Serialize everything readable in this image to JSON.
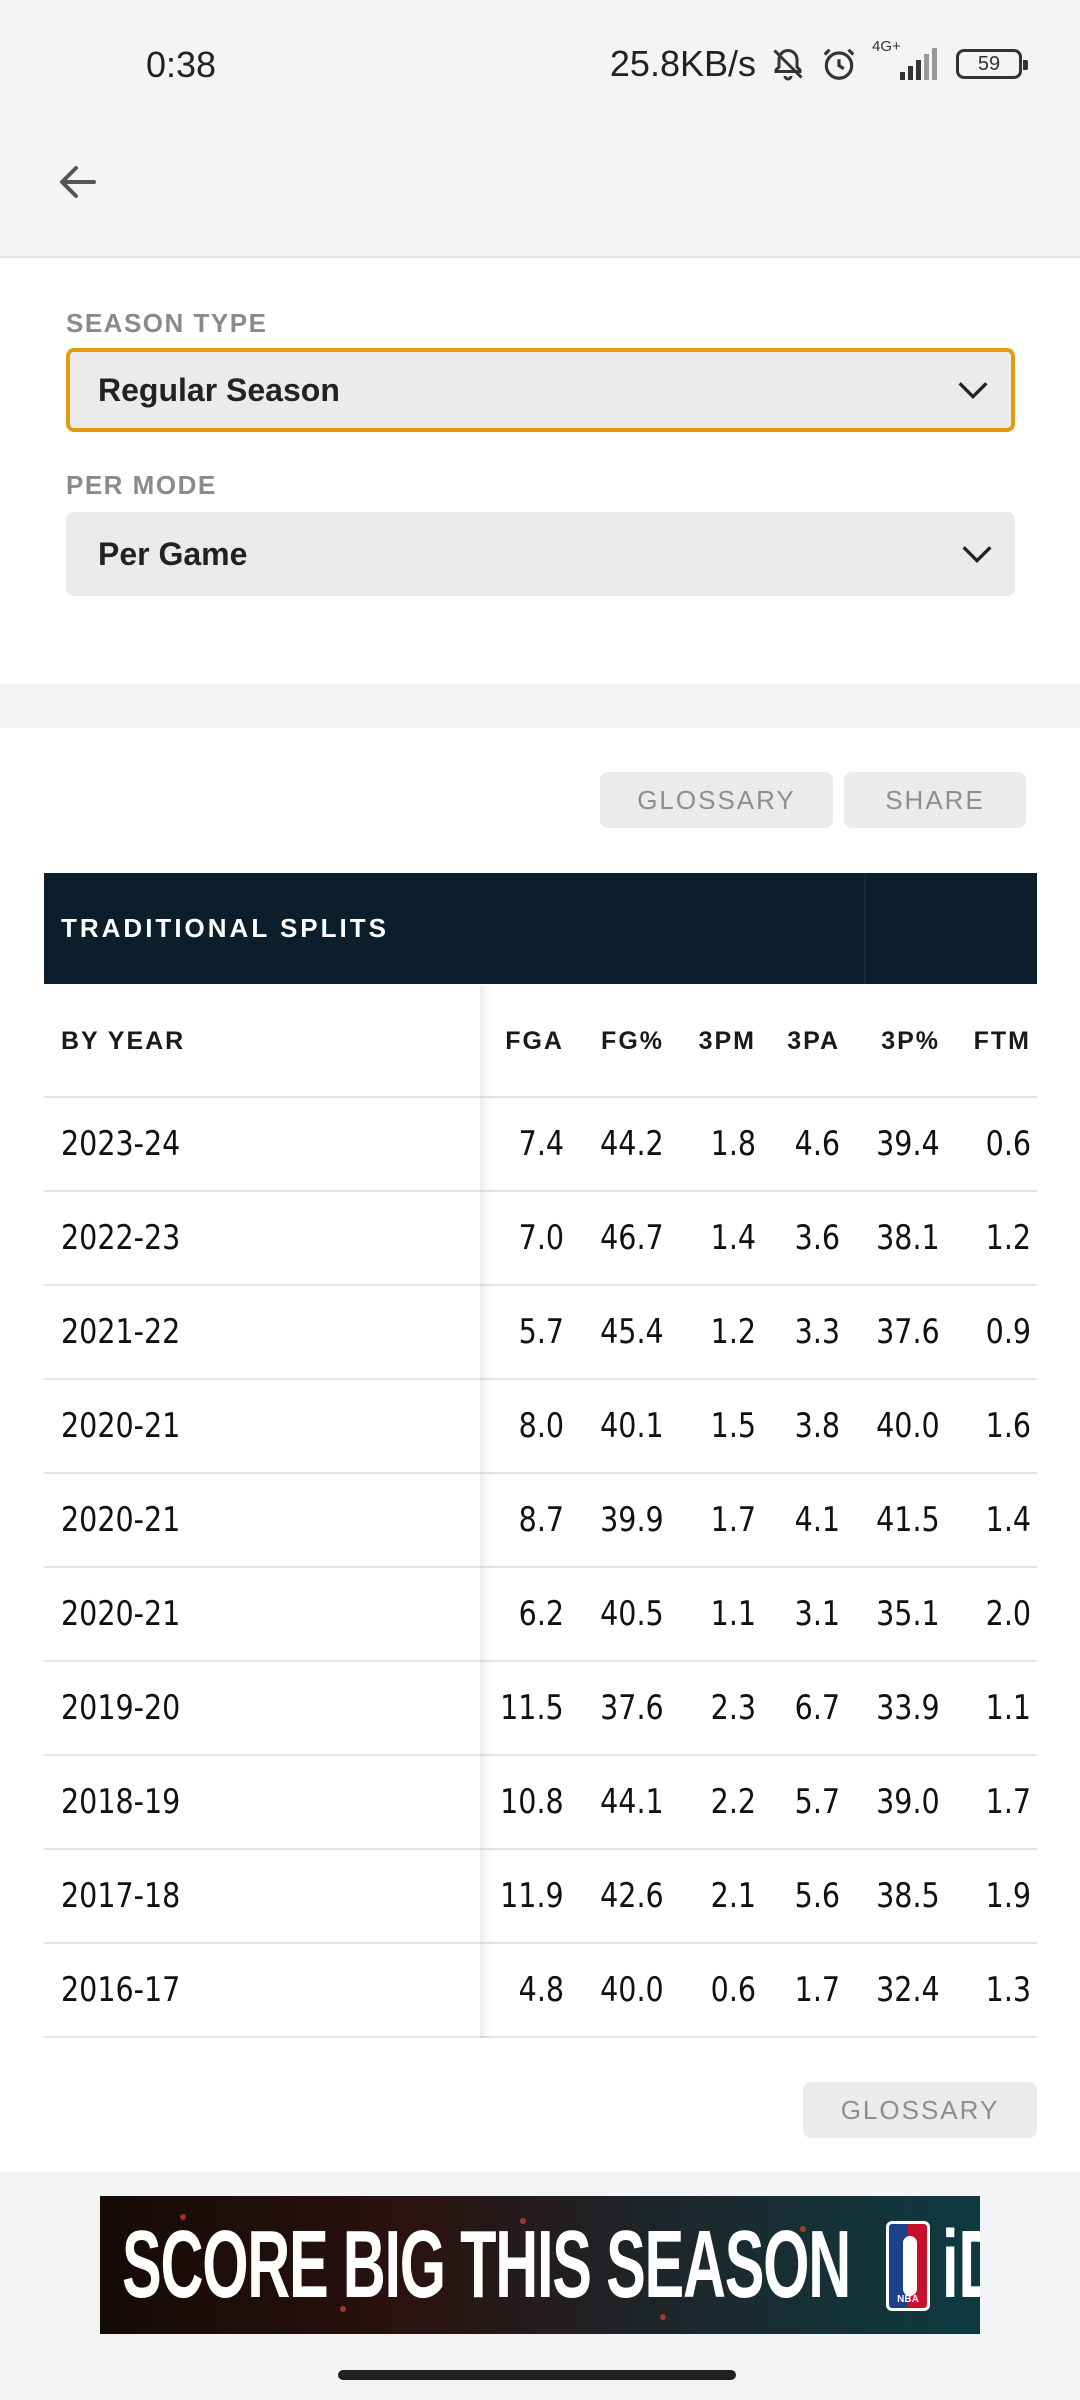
{
  "status_bar": {
    "time": "0:38",
    "net_speed": "25.8KB/s",
    "network_label": "4G+",
    "battery": "59"
  },
  "filters": {
    "season_type_label": "SEASON TYPE",
    "season_type_value": "Regular Season",
    "per_mode_label": "PER MODE",
    "per_mode_value": "Per Game",
    "accent_color": "#e49b0f"
  },
  "actions": {
    "glossary": "GLOSSARY",
    "share": "SHARE",
    "glossary_bottom": "GLOSSARY"
  },
  "table": {
    "title": "TRADITIONAL SPLITS",
    "header_color": "#0b1e2c",
    "columns": [
      "BY YEAR",
      "FGA",
      "FG%",
      "3PM",
      "3PA",
      "3P%",
      "FTM"
    ],
    "rows": [
      [
        "2023-24",
        "7.4",
        "44.2",
        "1.8",
        "4.6",
        "39.4",
        "0.6"
      ],
      [
        "2022-23",
        "7.0",
        "46.7",
        "1.4",
        "3.6",
        "38.1",
        "1.2"
      ],
      [
        "2021-22",
        "5.7",
        "45.4",
        "1.2",
        "3.3",
        "37.6",
        "0.9"
      ],
      [
        "2020-21",
        "8.0",
        "40.1",
        "1.5",
        "3.8",
        "40.0",
        "1.6"
      ],
      [
        "2020-21",
        "8.7",
        "39.9",
        "1.7",
        "4.1",
        "41.5",
        "1.4"
      ],
      [
        "2020-21",
        "6.2",
        "40.5",
        "1.1",
        "3.1",
        "35.1",
        "2.0"
      ],
      [
        "2019-20",
        "11.5",
        "37.6",
        "2.3",
        "6.7",
        "33.9",
        "1.1"
      ],
      [
        "2018-19",
        "10.8",
        "44.1",
        "2.2",
        "5.7",
        "39.0",
        "1.7"
      ],
      [
        "2017-18",
        "11.9",
        "42.6",
        "2.1",
        "5.6",
        "38.5",
        "1.9"
      ],
      [
        "2016-17",
        "4.8",
        "40.0",
        "0.6",
        "1.7",
        "32.4",
        "1.3"
      ]
    ]
  },
  "ad": {
    "headline": "SCORE BIG THIS SEASON",
    "logo_text": "NBA",
    "suffix": "iD"
  }
}
